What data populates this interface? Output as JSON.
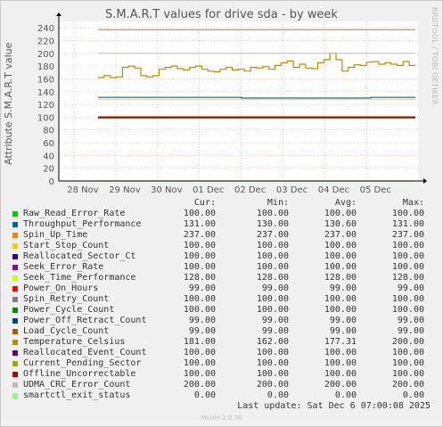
{
  "title": "S.M.A.R.T values for drive sda - by week",
  "side_label": "RRDTOOL / TOBI OETIKER",
  "chart_data": {
    "type": "line",
    "title": "S.M.A.R.T values for drive sda - by week",
    "ylabel": "Attribute S.M.A.R.T value",
    "ylim": [
      0,
      250
    ],
    "y_ticks": [
      0,
      20,
      40,
      60,
      80,
      100,
      120,
      140,
      160,
      180,
      200,
      220,
      240
    ],
    "x_ticks": [
      "28 Nov",
      "29 Nov",
      "30 Nov",
      "01 Dec",
      "02 Dec",
      "03 Dec",
      "04 Dec",
      "05 Dec"
    ],
    "grid": true,
    "series": [
      {
        "name": "Raw_Read_Error_Rate",
        "color": "#00cc00",
        "values": [
          100,
          100
        ]
      },
      {
        "name": "Throughput_Performance",
        "color": "#0066b3",
        "values": [
          131,
          130,
          130,
          131
        ]
      },
      {
        "name": "Spin_Up_Time",
        "color": "#ff8000",
        "values": [
          237,
          237
        ]
      },
      {
        "name": "Start_Stop_Count",
        "color": "#ffcc00",
        "values": [
          100,
          100
        ]
      },
      {
        "name": "Reallocated_Sector_Ct",
        "color": "#330099",
        "values": [
          100,
          100
        ]
      },
      {
        "name": "Seek_Error_Rate",
        "color": "#990099",
        "values": [
          100,
          100
        ]
      },
      {
        "name": "Seek_Time_Performance",
        "color": "#ccff00",
        "values": [
          128,
          128
        ]
      },
      {
        "name": "Power_On_Hours",
        "color": "#ff0000",
        "values": [
          99,
          99
        ]
      },
      {
        "name": "Spin_Retry_Count",
        "color": "#808080",
        "values": [
          100,
          100
        ]
      },
      {
        "name": "Power_Cycle_Count",
        "color": "#008f00",
        "values": [
          100,
          100
        ]
      },
      {
        "name": "Power_Off_Retract_Count",
        "color": "#00487d",
        "values": [
          99,
          99
        ]
      },
      {
        "name": "Load_Cycle_Count",
        "color": "#b35a00",
        "values": [
          99,
          99
        ]
      },
      {
        "name": "Temperature_Celsius",
        "color": "#b38f00",
        "values": [
          162,
          165,
          162,
          163,
          178,
          180,
          177,
          165,
          163,
          165,
          175,
          178,
          180,
          176,
          174,
          178,
          180,
          175,
          172,
          171,
          175,
          178,
          174,
          175,
          172,
          178,
          177,
          179,
          175,
          181,
          185,
          188,
          178,
          183,
          177,
          176,
          185,
          190,
          200,
          190,
          172,
          178,
          182,
          181,
          186,
          187,
          183,
          185,
          183,
          181,
          187,
          181,
          181
        ]
      },
      {
        "name": "Reallocated_Event_Count",
        "color": "#6b006b",
        "values": [
          100,
          100
        ]
      },
      {
        "name": "Current_Pending_Sector",
        "color": "#8fb300",
        "values": [
          100,
          100
        ]
      },
      {
        "name": "Offline_Uncorrectable",
        "color": "#b30000",
        "values": [
          100,
          100
        ]
      },
      {
        "name": "UDMA_CRC_Error_Count",
        "color": "#bebebe",
        "values": [
          200,
          200
        ]
      },
      {
        "name": "smartctl_exit_status",
        "color": "#80ff80",
        "values": [
          0,
          0
        ]
      }
    ]
  },
  "legend": {
    "headers": {
      "cur": "Cur:",
      "min": "Min:",
      "avg": "Avg:",
      "max": "Max:"
    },
    "rows": [
      {
        "name": "Raw_Read_Error_Rate",
        "color": "#00cc00",
        "cur": "100.00",
        "min": "100.00",
        "avg": "100.00",
        "max": "100.00"
      },
      {
        "name": "Throughput_Performance",
        "color": "#0066b3",
        "cur": "131.00",
        "min": "130.00",
        "avg": "130.60",
        "max": "131.00"
      },
      {
        "name": "Spin_Up_Time",
        "color": "#ff8000",
        "cur": "237.00",
        "min": "237.00",
        "avg": "237.00",
        "max": "237.00"
      },
      {
        "name": "Start_Stop_Count",
        "color": "#ffcc00",
        "cur": "100.00",
        "min": "100.00",
        "avg": "100.00",
        "max": "100.00"
      },
      {
        "name": "Reallocated_Sector_Ct",
        "color": "#330099",
        "cur": "100.00",
        "min": "100.00",
        "avg": "100.00",
        "max": "100.00"
      },
      {
        "name": "Seek_Error_Rate",
        "color": "#990099",
        "cur": "100.00",
        "min": "100.00",
        "avg": "100.00",
        "max": "100.00"
      },
      {
        "name": "Seek_Time_Performance",
        "color": "#ccff00",
        "cur": "128.00",
        "min": "128.00",
        "avg": "128.00",
        "max": "128.00"
      },
      {
        "name": "Power_On_Hours",
        "color": "#ff0000",
        "cur": "99.00",
        "min": "99.00",
        "avg": "99.00",
        "max": "99.00"
      },
      {
        "name": "Spin_Retry_Count",
        "color": "#808080",
        "cur": "100.00",
        "min": "100.00",
        "avg": "100.00",
        "max": "100.00"
      },
      {
        "name": "Power_Cycle_Count",
        "color": "#008f00",
        "cur": "100.00",
        "min": "100.00",
        "avg": "100.00",
        "max": "100.00"
      },
      {
        "name": "Power_Off_Retract_Count",
        "color": "#00487d",
        "cur": "99.00",
        "min": "99.00",
        "avg": "99.00",
        "max": "99.00"
      },
      {
        "name": "Load_Cycle_Count",
        "color": "#b35a00",
        "cur": "99.00",
        "min": "99.00",
        "avg": "99.00",
        "max": "99.00"
      },
      {
        "name": "Temperature_Celsius",
        "color": "#b38f00",
        "cur": "181.00",
        "min": "162.00",
        "avg": "177.31",
        "max": "200.00"
      },
      {
        "name": "Reallocated_Event_Count",
        "color": "#6b006b",
        "cur": "100.00",
        "min": "100.00",
        "avg": "100.00",
        "max": "100.00"
      },
      {
        "name": "Current_Pending_Sector",
        "color": "#8fb300",
        "cur": "100.00",
        "min": "100.00",
        "avg": "100.00",
        "max": "100.00"
      },
      {
        "name": "Offline_Uncorrectable",
        "color": "#b30000",
        "cur": "100.00",
        "min": "100.00",
        "avg": "100.00",
        "max": "100.00"
      },
      {
        "name": "UDMA_CRC_Error_Count",
        "color": "#bebebe",
        "cur": "200.00",
        "min": "200.00",
        "avg": "200.00",
        "max": "200.00"
      },
      {
        "name": "smartctl_exit_status",
        "color": "#80ff80",
        "cur": "0.00",
        "min": "0.00",
        "avg": "0.00",
        "max": "0.00"
      }
    ]
  },
  "footer": "Last update: Sat Dec  6 07:00:08 2025",
  "munin_version": "Munin 2.0.76"
}
